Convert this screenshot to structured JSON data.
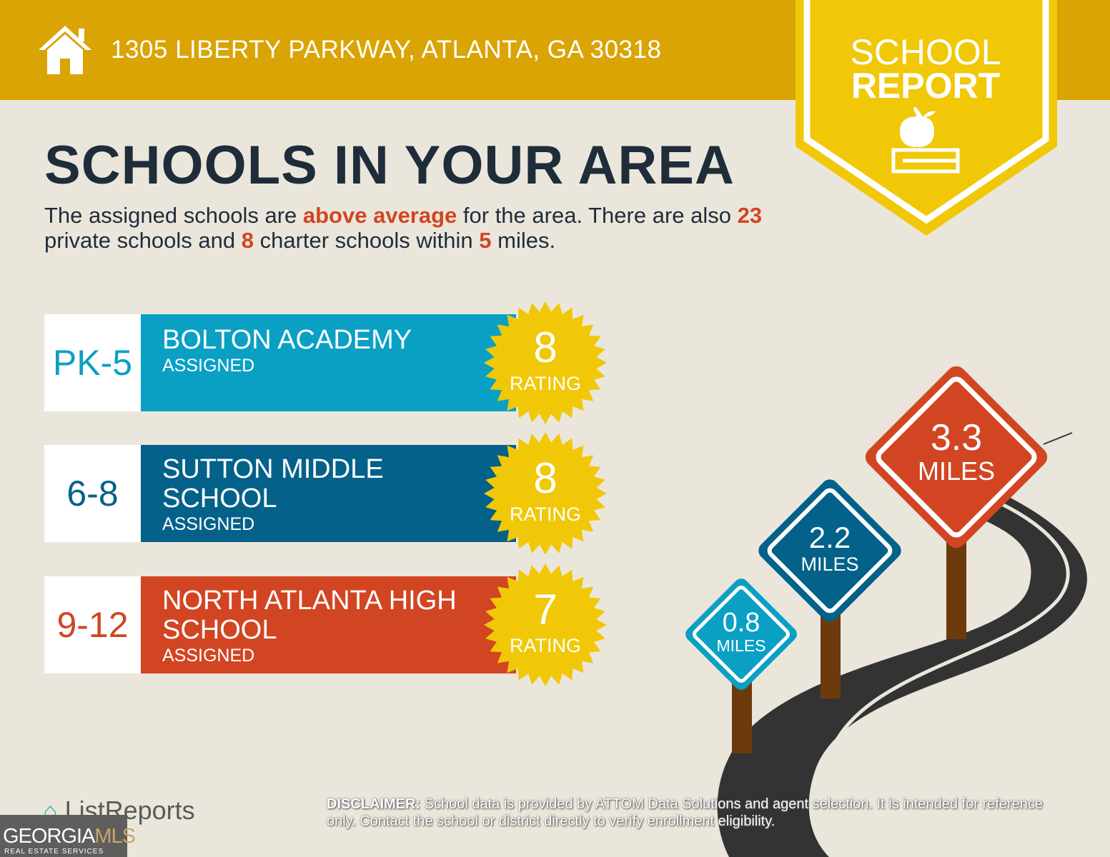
{
  "header": {
    "address": "1305 LIBERTY PARKWAY, ATLANTA, GA 30318",
    "icon": "house-icon"
  },
  "badge": {
    "line1": "SCHOOL",
    "line2": "REPORT",
    "icon": "apple-on-book-icon"
  },
  "title": "SCHOOLS IN YOUR AREA",
  "subtitle": {
    "p1": "The assigned schools are ",
    "h1": "above average",
    "p2": " for the area. There are also ",
    "h2": "23",
    "p3": " private schools and ",
    "h3": "8",
    "p4": " charter schools within ",
    "h4": "5",
    "p5": " miles."
  },
  "schools": [
    {
      "grade": "PK-5",
      "name": "BOLTON ACADEMY",
      "status": "ASSIGNED",
      "rating": "8",
      "rating_label": "RATING",
      "color": "#0aa0c4"
    },
    {
      "grade": "6-8",
      "name": "SUTTON MIDDLE SCHOOL",
      "status": "ASSIGNED",
      "rating": "8",
      "rating_label": "RATING",
      "color": "#046189"
    },
    {
      "grade": "9-12",
      "name": "NORTH ATLANTA HIGH SCHOOL",
      "status": "ASSIGNED",
      "rating": "7",
      "rating_label": "RATING",
      "color": "#d24522"
    }
  ],
  "distances": [
    {
      "value": "0.8",
      "unit": "MILES",
      "color": "#0aa0c4"
    },
    {
      "value": "2.2",
      "unit": "MILES",
      "color": "#046189"
    },
    {
      "value": "3.3",
      "unit": "MILES",
      "color": "#d24522"
    }
  ],
  "footer": {
    "logo": "ListReports",
    "gmls": "GEORGIA",
    "gmls2": "MLS",
    "gmls_sub": "REAL ESTATE SERVICES",
    "disclaimer_label": "DISCLAIMER:",
    "disclaimer": " School data is provided by ATTOM Data Solutions and agent selection. It is intended for reference only. Contact the school or district directly to verify enrollment eligibility."
  },
  "colors": {
    "header": "#d9a404",
    "badge": "#f0c808",
    "background": "#ebe6dc",
    "text": "#1f2d3a",
    "accent": "#d24522",
    "star": "#f0c808"
  }
}
